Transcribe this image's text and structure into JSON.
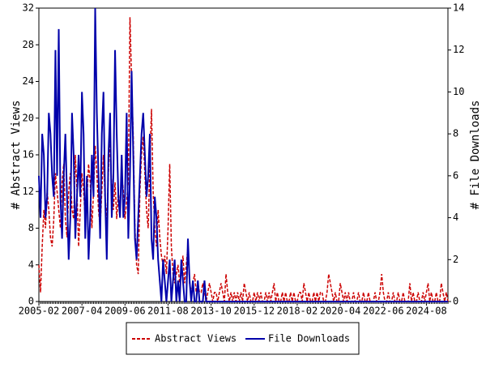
{
  "chart_data": {
    "type": "line",
    "y_label": "# Abstract Views",
    "y2_label": "# File Downloads",
    "categories": [
      "2005-02",
      null,
      null,
      null,
      null,
      null,
      null,
      null,
      null,
      null,
      null,
      null,
      null,
      null,
      null,
      null,
      null,
      null,
      null,
      null,
      null,
      null,
      null,
      null,
      null,
      null,
      "2007-04",
      null,
      null,
      null,
      null,
      null,
      null,
      null,
      null,
      null,
      null,
      null,
      null,
      null,
      null,
      null,
      null,
      null,
      null,
      null,
      null,
      null,
      null,
      null,
      null,
      null,
      "2009-06",
      null,
      null,
      null,
      null,
      null,
      null,
      null,
      null,
      null,
      null,
      null,
      null,
      null,
      null,
      null,
      null,
      null,
      null,
      null,
      null,
      null,
      null,
      null,
      null,
      null,
      "2011-08",
      null,
      null,
      null,
      null,
      null,
      null,
      null,
      null,
      null,
      null,
      null,
      null,
      null,
      null,
      null,
      null,
      null,
      null,
      null,
      null,
      null,
      null,
      null,
      null,
      null,
      "2013-10",
      null,
      null,
      null,
      null,
      null,
      null,
      null,
      null,
      null,
      null,
      null,
      null,
      null,
      null,
      null,
      null,
      null,
      null,
      null,
      null,
      null,
      null,
      null,
      null,
      null,
      "2015-12",
      null,
      null,
      null,
      null,
      null,
      null,
      null,
      null,
      null,
      null,
      null,
      null,
      null,
      null,
      null,
      null,
      null,
      null,
      null,
      null,
      null,
      null,
      null,
      null,
      null,
      "2018-02",
      null,
      null,
      null,
      null,
      null,
      null,
      null,
      null,
      null,
      null,
      null,
      null,
      null,
      null,
      null,
      null,
      null,
      null,
      null,
      null,
      null,
      null,
      null,
      null,
      null,
      "2020-04",
      null,
      null,
      null,
      null,
      null,
      null,
      null,
      null,
      null,
      null,
      null,
      null,
      null,
      null,
      null,
      null,
      null,
      null,
      null,
      null,
      null,
      null,
      null,
      null,
      null,
      "2022-06",
      null,
      null,
      null,
      null,
      null,
      null,
      null,
      null,
      null,
      null,
      null,
      null,
      null,
      null,
      null,
      null,
      null,
      null,
      null,
      null,
      null,
      null,
      null,
      null,
      null,
      "2024-08",
      null,
      null,
      null,
      null,
      null,
      null,
      null,
      null,
      null,
      null,
      null,
      null,
      null
    ],
    "series": [
      {
        "name": "Abstract Views",
        "color": "#cc0000",
        "dash": true,
        "axis": "y",
        "values": [
          4,
          1,
          6,
          10,
          8,
          12,
          10,
          7,
          6,
          9,
          14,
          12,
          10,
          8,
          13,
          15,
          9,
          7,
          12,
          14,
          10,
          9,
          16,
          12,
          6,
          10,
          14,
          12,
          9,
          11,
          15,
          13,
          8,
          12,
          17,
          14,
          10,
          8,
          12,
          16,
          11,
          9,
          14,
          18,
          12,
          10,
          13,
          9,
          12,
          10,
          14,
          12,
          9,
          11,
          13,
          31,
          24,
          18,
          8,
          4,
          3,
          12,
          16,
          18,
          14,
          10,
          8,
          15,
          21,
          12,
          8,
          6,
          10,
          7,
          5,
          4,
          5,
          3,
          8,
          15,
          6,
          3,
          2,
          3,
          4,
          2,
          3,
          5,
          2,
          4,
          6,
          2,
          1,
          2,
          3,
          1,
          2,
          1,
          1,
          2,
          1,
          0,
          1,
          2,
          1,
          0,
          1,
          1,
          0,
          1,
          2,
          1,
          0,
          3,
          1,
          0,
          1,
          0,
          1,
          0,
          1,
          0,
          1,
          0,
          2,
          1,
          0,
          1,
          0,
          0,
          1,
          0,
          1,
          0,
          1,
          0,
          0,
          1,
          0,
          1,
          0,
          1,
          2,
          0,
          1,
          0,
          0,
          1,
          0,
          1,
          0,
          0,
          1,
          0,
          1,
          0,
          0,
          1,
          1,
          0,
          2,
          1,
          0,
          1,
          0,
          0,
          1,
          0,
          1,
          0,
          1,
          1,
          0,
          0,
          1,
          3,
          2,
          1,
          0,
          1,
          0,
          0,
          2,
          1,
          0,
          1,
          0,
          1,
          0,
          0,
          1,
          0,
          0,
          1,
          0,
          0,
          1,
          0,
          0,
          1,
          0,
          0,
          0,
          1,
          0,
          0,
          1,
          3,
          1,
          0,
          0,
          1,
          0,
          0,
          1,
          0,
          0,
          1,
          0,
          0,
          1,
          0,
          0,
          0,
          2,
          0,
          1,
          0,
          0,
          1,
          0,
          0,
          1,
          0,
          1,
          2,
          0,
          1,
          0,
          0,
          1,
          0,
          0,
          2,
          1,
          0,
          1,
          0
        ]
      },
      {
        "name": "File Downloads",
        "color": "#0000aa",
        "dash": false,
        "axis": "y2",
        "values": [
          6,
          4,
          8,
          7,
          4,
          5,
          9,
          8,
          6,
          5,
          12,
          6,
          13,
          5,
          3,
          6,
          8,
          5,
          2,
          4,
          9,
          7,
          3,
          5,
          7,
          5,
          10,
          8,
          3,
          6,
          2,
          4,
          7,
          5,
          14,
          9,
          6,
          3,
          8,
          10,
          5,
          2,
          7,
          9,
          4,
          6,
          12,
          8,
          5,
          4,
          7,
          4,
          5,
          9,
          3,
          6,
          11,
          7,
          3,
          2,
          4,
          6,
          8,
          9,
          7,
          5,
          6,
          8,
          3,
          2,
          5,
          4,
          2,
          1,
          0,
          2,
          1,
          0,
          1,
          2,
          0,
          1,
          2,
          0,
          1,
          0,
          2,
          1,
          0,
          0,
          3,
          1,
          0,
          1,
          0,
          0,
          1,
          0,
          0,
          0,
          1,
          0,
          0,
          0,
          0,
          0,
          0,
          0,
          0,
          0,
          0,
          0,
          0,
          0,
          0,
          0,
          0,
          0,
          0,
          0,
          0,
          0,
          0,
          0,
          0,
          0,
          0,
          0,
          0,
          0,
          0,
          0,
          0,
          0,
          0,
          0,
          0,
          0,
          0,
          0,
          0,
          0,
          0,
          0,
          0,
          0,
          0,
          0,
          0,
          0,
          0,
          0,
          0,
          0,
          0,
          0,
          0,
          0,
          0,
          0,
          0,
          0,
          0,
          0,
          0,
          0,
          0,
          0,
          0,
          0,
          0,
          0,
          0,
          0,
          0,
          0,
          0,
          0,
          0,
          0,
          0,
          0,
          0,
          0,
          0,
          0,
          0,
          0,
          0,
          0,
          0,
          0,
          0,
          0,
          0,
          0,
          0,
          0,
          0,
          0,
          0,
          0,
          0,
          0,
          0,
          0,
          0,
          0,
          0,
          0,
          0,
          0,
          0,
          0,
          0,
          0,
          0,
          0,
          0,
          0,
          0,
          0,
          0,
          0,
          0,
          0,
          0,
          0,
          0,
          0,
          0,
          0,
          0,
          0,
          0,
          0,
          0,
          0,
          0,
          0,
          0,
          0,
          0,
          0,
          0,
          0,
          0,
          0
        ]
      }
    ],
    "ylim": [
      0,
      32
    ],
    "yticks": [
      0,
      4,
      8,
      12,
      16,
      20,
      24,
      28,
      32
    ],
    "y2lim": [
      0,
      14
    ],
    "y2ticks": [
      0,
      2,
      4,
      6,
      8,
      10,
      12,
      14
    ]
  }
}
